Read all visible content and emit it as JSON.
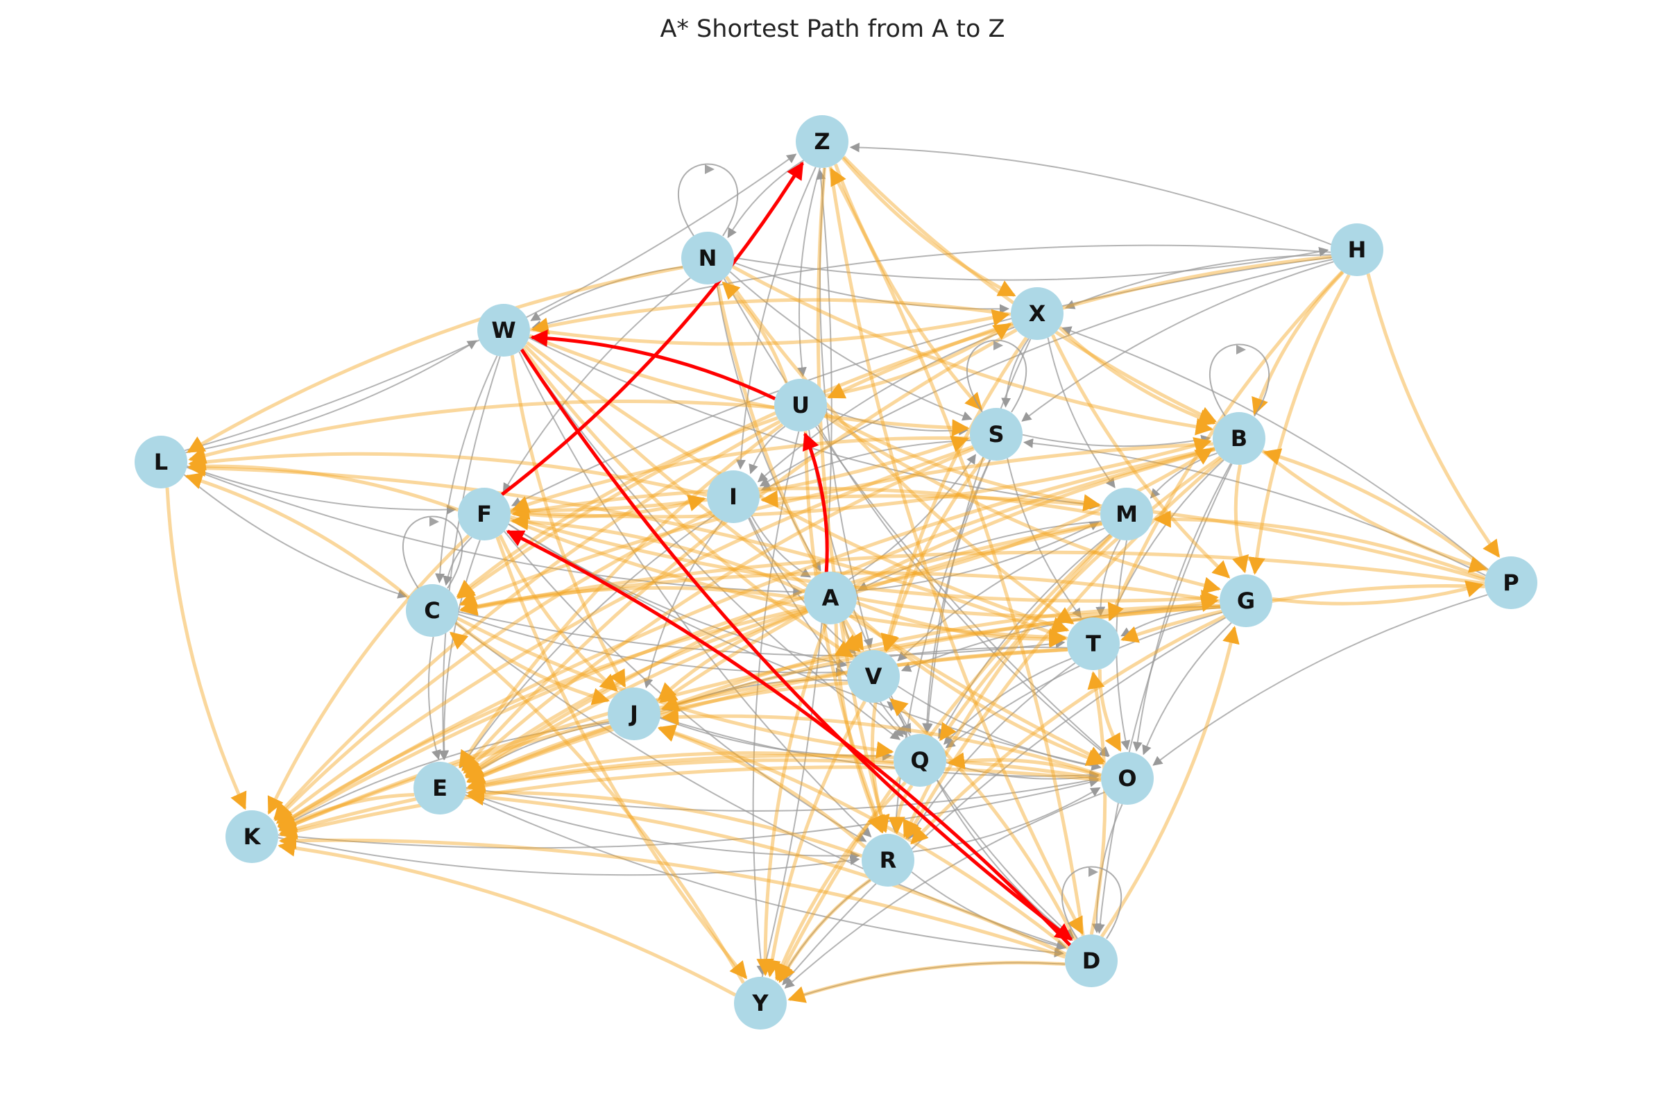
{
  "title": "A* Shortest Path from A to Z",
  "colors": {
    "node_fill": "#add8e6",
    "path_edge": "#ff0000",
    "explored_edge": "#f5a623",
    "other_edge": "#999999",
    "label": "#111111"
  },
  "nodes": [
    {
      "id": "A",
      "label": "A"
    },
    {
      "id": "B",
      "label": "B"
    },
    {
      "id": "C",
      "label": "C"
    },
    {
      "id": "D",
      "label": "D"
    },
    {
      "id": "E",
      "label": "E"
    },
    {
      "id": "F",
      "label": "F"
    },
    {
      "id": "G",
      "label": "G"
    },
    {
      "id": "H",
      "label": "H"
    },
    {
      "id": "I",
      "label": "I"
    },
    {
      "id": "J",
      "label": "J"
    },
    {
      "id": "K",
      "label": "K"
    },
    {
      "id": "L",
      "label": "L"
    },
    {
      "id": "M",
      "label": "M"
    },
    {
      "id": "N",
      "label": "N"
    },
    {
      "id": "O",
      "label": "O"
    },
    {
      "id": "P",
      "label": "P"
    },
    {
      "id": "Q",
      "label": "Q"
    },
    {
      "id": "R",
      "label": "R"
    },
    {
      "id": "S",
      "label": "S"
    },
    {
      "id": "T",
      "label": "T"
    },
    {
      "id": "U",
      "label": "U"
    },
    {
      "id": "V",
      "label": "V"
    },
    {
      "id": "W",
      "label": "W"
    },
    {
      "id": "X",
      "label": "X"
    },
    {
      "id": "Y",
      "label": "Y"
    },
    {
      "id": "Z",
      "label": "Z"
    }
  ],
  "path": [
    "A",
    "U",
    "W",
    "D",
    "F",
    "Z"
  ],
  "explored_edges": [
    [
      "A",
      "F"
    ],
    [
      "A",
      "C"
    ],
    [
      "A",
      "K"
    ],
    [
      "A",
      "E"
    ],
    [
      "A",
      "J"
    ],
    [
      "A",
      "T"
    ],
    [
      "A",
      "O"
    ],
    [
      "A",
      "V"
    ],
    [
      "A",
      "B"
    ],
    [
      "A",
      "G"
    ],
    [
      "A",
      "R"
    ],
    [
      "A",
      "Y"
    ],
    [
      "F",
      "L"
    ],
    [
      "F",
      "I"
    ],
    [
      "F",
      "G"
    ],
    [
      "F",
      "B"
    ],
    [
      "F",
      "T"
    ],
    [
      "F",
      "J"
    ],
    [
      "F",
      "Y"
    ],
    [
      "F",
      "S"
    ],
    [
      "F",
      "K"
    ],
    [
      "U",
      "N"
    ],
    [
      "U",
      "X"
    ],
    [
      "U",
      "L"
    ],
    [
      "U",
      "K"
    ],
    [
      "U",
      "G"
    ],
    [
      "U",
      "M"
    ],
    [
      "U",
      "E"
    ],
    [
      "U",
      "R"
    ],
    [
      "U",
      "C"
    ],
    [
      "W",
      "X"
    ],
    [
      "W",
      "V"
    ],
    [
      "W",
      "T"
    ],
    [
      "W",
      "O"
    ],
    [
      "W",
      "S"
    ],
    [
      "W",
      "J"
    ],
    [
      "D",
      "Z"
    ],
    [
      "D",
      "Y"
    ],
    [
      "D",
      "G"
    ],
    [
      "D",
      "E"
    ],
    [
      "D",
      "J"
    ],
    [
      "D",
      "K"
    ],
    [
      "D",
      "T"
    ],
    [
      "D",
      "V"
    ],
    [
      "Z",
      "X"
    ],
    [
      "Z",
      "S"
    ],
    [
      "Z",
      "B"
    ],
    [
      "Z",
      "R"
    ],
    [
      "Z",
      "D"
    ],
    [
      "N",
      "L"
    ],
    [
      "N",
      "B"
    ],
    [
      "N",
      "T"
    ],
    [
      "N",
      "V"
    ],
    [
      "H",
      "B"
    ],
    [
      "H",
      "G"
    ],
    [
      "H",
      "P"
    ],
    [
      "H",
      "U"
    ],
    [
      "H",
      "T"
    ],
    [
      "B",
      "K"
    ],
    [
      "B",
      "C"
    ],
    [
      "B",
      "G"
    ],
    [
      "B",
      "E"
    ],
    [
      "B",
      "P"
    ],
    [
      "B",
      "J"
    ],
    [
      "B",
      "R"
    ],
    [
      "B",
      "Q"
    ],
    [
      "G",
      "C"
    ],
    [
      "G",
      "J"
    ],
    [
      "G",
      "E"
    ],
    [
      "G",
      "K"
    ],
    [
      "G",
      "P"
    ],
    [
      "G",
      "R"
    ],
    [
      "P",
      "M"
    ],
    [
      "P",
      "I"
    ],
    [
      "P",
      "C"
    ],
    [
      "P",
      "T"
    ],
    [
      "P",
      "B"
    ],
    [
      "M",
      "E"
    ],
    [
      "M",
      "F"
    ],
    [
      "M",
      "Y"
    ],
    [
      "M",
      "K"
    ],
    [
      "M",
      "R"
    ],
    [
      "T",
      "O"
    ],
    [
      "T",
      "E"
    ],
    [
      "T",
      "L"
    ],
    [
      "T",
      "K"
    ],
    [
      "S",
      "K"
    ],
    [
      "S",
      "E"
    ],
    [
      "S",
      "F"
    ],
    [
      "S",
      "V"
    ],
    [
      "X",
      "W"
    ],
    [
      "X",
      "B"
    ],
    [
      "X",
      "G"
    ],
    [
      "X",
      "E"
    ],
    [
      "X",
      "V"
    ],
    [
      "X",
      "C"
    ],
    [
      "I",
      "L"
    ],
    [
      "I",
      "K"
    ],
    [
      "Q",
      "E"
    ],
    [
      "Q",
      "K"
    ],
    [
      "Q",
      "Y"
    ],
    [
      "Q",
      "R"
    ],
    [
      "R",
      "E"
    ],
    [
      "R",
      "J"
    ],
    [
      "R",
      "Y"
    ],
    [
      "O",
      "J"
    ],
    [
      "O",
      "Q"
    ],
    [
      "O",
      "K"
    ],
    [
      "O",
      "E"
    ],
    [
      "Y",
      "K"
    ],
    [
      "Y",
      "C"
    ],
    [
      "C",
      "J"
    ],
    [
      "C",
      "L"
    ],
    [
      "C",
      "Q"
    ],
    [
      "V",
      "E"
    ],
    [
      "V",
      "Y"
    ],
    [
      "V",
      "R"
    ],
    [
      "L",
      "K"
    ],
    [
      "E",
      "K"
    ]
  ],
  "other_edges": [
    [
      "L",
      "Z"
    ],
    [
      "L",
      "W"
    ],
    [
      "L",
      "C"
    ],
    [
      "L",
      "A"
    ],
    [
      "L",
      "F"
    ],
    [
      "N",
      "W"
    ],
    [
      "N",
      "H"
    ],
    [
      "N",
      "S"
    ],
    [
      "N",
      "A"
    ],
    [
      "N",
      "F"
    ],
    [
      "N",
      "O"
    ],
    [
      "N",
      "X"
    ],
    [
      "H",
      "W"
    ],
    [
      "H",
      "X"
    ],
    [
      "H",
      "S"
    ],
    [
      "H",
      "I"
    ],
    [
      "H",
      "F"
    ],
    [
      "H",
      "Z"
    ],
    [
      "X",
      "S"
    ],
    [
      "X",
      "M"
    ],
    [
      "X",
      "I"
    ],
    [
      "X",
      "Q"
    ],
    [
      "W",
      "C"
    ],
    [
      "W",
      "E"
    ],
    [
      "W",
      "M"
    ],
    [
      "W",
      "Q"
    ],
    [
      "W",
      "R"
    ],
    [
      "U",
      "S"
    ],
    [
      "U",
      "O"
    ],
    [
      "U",
      "Q"
    ],
    [
      "U",
      "Y"
    ],
    [
      "U",
      "I"
    ],
    [
      "S",
      "B"
    ],
    [
      "S",
      "T"
    ],
    [
      "S",
      "Q"
    ],
    [
      "S",
      "R"
    ],
    [
      "S",
      "I"
    ],
    [
      "B",
      "M"
    ],
    [
      "B",
      "T"
    ],
    [
      "B",
      "O"
    ],
    [
      "B",
      "D"
    ],
    [
      "I",
      "V"
    ],
    [
      "I",
      "J"
    ],
    [
      "I",
      "E"
    ],
    [
      "I",
      "Q"
    ],
    [
      "I",
      "A"
    ],
    [
      "F",
      "C"
    ],
    [
      "F",
      "E"
    ],
    [
      "F",
      "O"
    ],
    [
      "F",
      "R"
    ],
    [
      "F",
      "V"
    ],
    [
      "C",
      "D"
    ],
    [
      "C",
      "T"
    ],
    [
      "C",
      "E"
    ],
    [
      "C",
      "V"
    ],
    [
      "M",
      "T"
    ],
    [
      "M",
      "Q"
    ],
    [
      "M",
      "O"
    ],
    [
      "M",
      "V"
    ],
    [
      "M",
      "A"
    ],
    [
      "A",
      "Q"
    ],
    [
      "A",
      "S"
    ],
    [
      "A",
      "M"
    ],
    [
      "G",
      "O"
    ],
    [
      "G",
      "Q"
    ],
    [
      "G",
      "T"
    ],
    [
      "G",
      "V"
    ],
    [
      "G",
      "Y"
    ],
    [
      "T",
      "Q"
    ],
    [
      "T",
      "R"
    ],
    [
      "T",
      "J"
    ],
    [
      "P",
      "O"
    ],
    [
      "P",
      "S"
    ],
    [
      "P",
      "X"
    ],
    [
      "V",
      "J"
    ],
    [
      "V",
      "O"
    ],
    [
      "V",
      "D"
    ],
    [
      "J",
      "Q"
    ],
    [
      "J",
      "K"
    ],
    [
      "J",
      "O"
    ],
    [
      "J",
      "E"
    ],
    [
      "Q",
      "D"
    ],
    [
      "Q",
      "O"
    ],
    [
      "Q",
      "V"
    ],
    [
      "E",
      "O"
    ],
    [
      "E",
      "R"
    ],
    [
      "E",
      "D"
    ],
    [
      "K",
      "R"
    ],
    [
      "K",
      "O"
    ],
    [
      "R",
      "D"
    ],
    [
      "R",
      "Y"
    ],
    [
      "R",
      "O"
    ],
    [
      "O",
      "Y"
    ],
    [
      "O",
      "D"
    ],
    [
      "D",
      "Y"
    ],
    [
      "Y",
      "Z"
    ],
    [
      "Z",
      "V"
    ],
    [
      "Z",
      "U"
    ],
    [
      "Z",
      "N"
    ],
    [
      "Z",
      "I"
    ]
  ],
  "self_loops": [
    "N",
    "B",
    "C",
    "S",
    "D"
  ]
}
